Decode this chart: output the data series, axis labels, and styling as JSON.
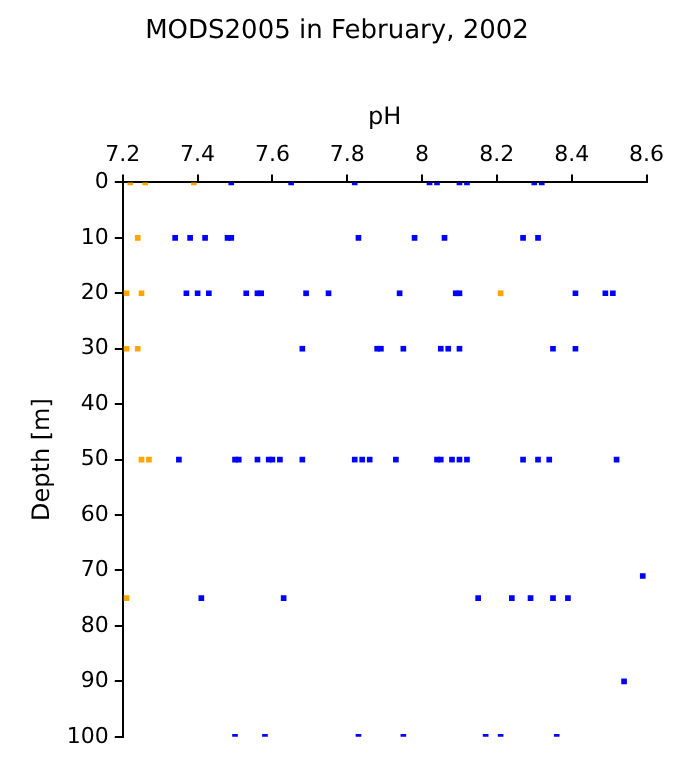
{
  "chart_data": {
    "type": "scatter",
    "title": "MODS2005 in February, 2002",
    "xlabel": "pH",
    "ylabel": "Depth [m]",
    "xlim": [
      7.2,
      8.6
    ],
    "xticks": [
      7.2,
      7.4,
      7.6,
      7.8,
      8,
      8.2,
      8.4,
      8.6
    ],
    "ylim": [
      100,
      0
    ],
    "yticks": [
      0,
      10,
      20,
      30,
      40,
      50,
      60,
      70,
      80,
      90,
      100
    ],
    "grid": false,
    "legend": false,
    "marker": "square",
    "series": [
      {
        "color": "#0000ff",
        "x": [
          7.49,
          7.65,
          7.82,
          8.02,
          8.04,
          8.1,
          8.12,
          8.3,
          8.32,
          7.34,
          7.38,
          7.42,
          7.48,
          7.49,
          7.83,
          7.98,
          8.06,
          8.27,
          8.31,
          7.37,
          7.4,
          7.43,
          7.53,
          7.56,
          7.57,
          7.69,
          7.75,
          7.94,
          8.09,
          8.1,
          8.41,
          8.49,
          8.51,
          7.68,
          7.88,
          7.89,
          7.95,
          8.05,
          8.07,
          8.1,
          8.35,
          8.41,
          7.35,
          7.5,
          7.51,
          7.56,
          7.59,
          7.6,
          7.62,
          7.68,
          7.82,
          7.84,
          7.86,
          7.93,
          8.04,
          8.05,
          8.08,
          8.1,
          8.12,
          8.27,
          8.31,
          8.34,
          8.52,
          8.59,
          7.41,
          7.63,
          8.15,
          8.24,
          8.29,
          8.35,
          8.39,
          8.54,
          7.5,
          7.58,
          7.83,
          7.95,
          8.17,
          8.21,
          8.36
        ],
        "values": [
          0,
          0,
          0,
          0,
          0,
          0,
          0,
          0,
          0,
          10,
          10,
          10,
          10,
          10,
          10,
          10,
          10,
          10,
          10,
          20,
          20,
          20,
          20,
          20,
          20,
          20,
          20,
          20,
          20,
          20,
          20,
          20,
          20,
          30,
          30,
          30,
          30,
          30,
          30,
          30,
          30,
          30,
          50,
          50,
          50,
          50,
          50,
          50,
          50,
          50,
          50,
          50,
          50,
          50,
          50,
          50,
          50,
          50,
          50,
          50,
          50,
          50,
          50,
          71,
          75,
          75,
          75,
          75,
          75,
          75,
          75,
          90,
          100,
          100,
          100,
          100,
          100,
          100,
          100
        ]
      },
      {
        "color": "#ffa500",
        "x": [
          7.22,
          7.26,
          7.39,
          7.24,
          7.21,
          7.25,
          8.21,
          7.21,
          7.24,
          7.25,
          7.27,
          7.21
        ],
        "values": [
          0,
          0,
          0,
          10,
          20,
          20,
          20,
          30,
          30,
          50,
          50,
          75
        ]
      }
    ]
  }
}
